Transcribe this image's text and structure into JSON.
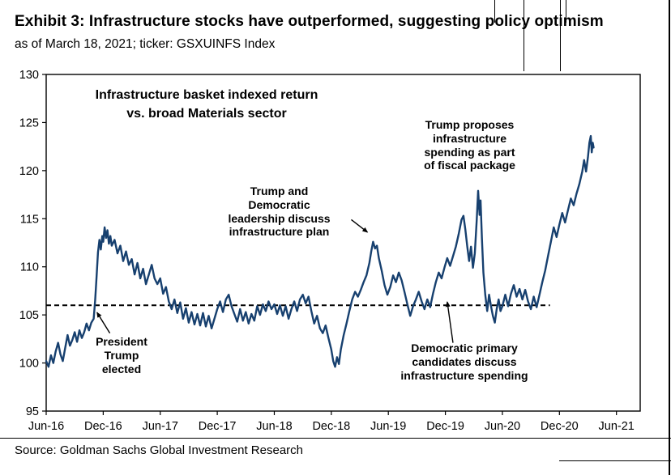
{
  "header": {
    "title": "Exhibit 3: Infrastructure stocks have outperformed, suggesting policy optimism",
    "subtitle": "as of March 18, 2021; ticker: GSXUINFS Index"
  },
  "footer": {
    "source": "Source: Goldman Sachs Global Investment Research"
  },
  "chart_data": {
    "type": "line",
    "title": "Infrastructure basket indexed return\nvs. broad Materials sector",
    "xlabel": "",
    "ylabel": "",
    "line_color": "#17406f",
    "grid": false,
    "legend": "none",
    "x_axis": {
      "tick_labels": [
        "Jun-16",
        "Dec-16",
        "Jun-17",
        "Dec-17",
        "Jun-18",
        "Dec-18",
        "Jun-19",
        "Dec-19",
        "Jun-20",
        "Dec-20",
        "Jun-21"
      ],
      "tick_spacing_months": 6,
      "range_months": [
        0,
        62.5
      ]
    },
    "y_axis": {
      "ticks": [
        95,
        100,
        105,
        110,
        115,
        120,
        125,
        130
      ],
      "range": [
        95,
        130
      ]
    },
    "dashed_reference_line": {
      "value": 106,
      "x_start": 0,
      "x_end": 53,
      "color": "#000000",
      "style": "dashed"
    },
    "annotations": [
      {
        "id": "president-trump-elected",
        "text": "President\nTrump\nelected",
        "arrow": {
          "from": [
            6.7,
            103.1
          ],
          "to": [
            5.35,
            105.25
          ]
        }
      },
      {
        "id": "trump-dem-leadership",
        "text": "Trump and\nDemocratic\nleadership discuss\ninfrastructure plan",
        "arrow": {
          "from": [
            32.1,
            114.9
          ],
          "to": [
            33.8,
            113.6
          ]
        }
      },
      {
        "id": "trump-proposes-fiscal",
        "text": "Trump proposes\ninfrastructure\nspending as part\nof fiscal package",
        "arrow": null
      },
      {
        "id": "democratic-primary",
        "text": "Democratic primary\ncandidates discuss\ninfrastructure spending",
        "arrow": {
          "from": [
            42.8,
            102.1
          ],
          "to": [
            42.2,
            106.35
          ]
        }
      }
    ],
    "series": [
      {
        "name": "GSXUINFS Index (infrastructure basket indexed return vs. broad Materials sector)",
        "x_unit": "months since Jun-2016",
        "points": [
          [
            0,
            100.2
          ],
          [
            0.25,
            99.6
          ],
          [
            0.5,
            100.8
          ],
          [
            0.75,
            100.0
          ],
          [
            1,
            101.2
          ],
          [
            1.25,
            102.1
          ],
          [
            1.5,
            100.9
          ],
          [
            1.75,
            100.2
          ],
          [
            2,
            101.6
          ],
          [
            2.25,
            102.9
          ],
          [
            2.5,
            101.8
          ],
          [
            2.75,
            102.4
          ],
          [
            3,
            103.2
          ],
          [
            3.25,
            102.2
          ],
          [
            3.5,
            103.4
          ],
          [
            3.75,
            102.6
          ],
          [
            4,
            103.2
          ],
          [
            4.25,
            104.1
          ],
          [
            4.5,
            103.4
          ],
          [
            4.75,
            104.2
          ],
          [
            5,
            104.6
          ],
          [
            5.15,
            106.5
          ],
          [
            5.3,
            109.0
          ],
          [
            5.45,
            111.5
          ],
          [
            5.6,
            112.8
          ],
          [
            5.75,
            111.8
          ],
          [
            5.9,
            113.2
          ],
          [
            6,
            112.6
          ],
          [
            6.15,
            114.1
          ],
          [
            6.3,
            113.0
          ],
          [
            6.45,
            113.8
          ],
          [
            6.6,
            112.4
          ],
          [
            6.75,
            113.2
          ],
          [
            6.9,
            112.2
          ],
          [
            7.2,
            112.8
          ],
          [
            7.5,
            111.4
          ],
          [
            7.8,
            112.2
          ],
          [
            8.1,
            110.6
          ],
          [
            8.4,
            111.6
          ],
          [
            8.7,
            110.2
          ],
          [
            9,
            110.8
          ],
          [
            9.3,
            109.2
          ],
          [
            9.6,
            110.4
          ],
          [
            9.9,
            108.8
          ],
          [
            10.2,
            109.8
          ],
          [
            10.5,
            108.2
          ],
          [
            10.8,
            109.2
          ],
          [
            11.1,
            110.2
          ],
          [
            11.4,
            108.8
          ],
          [
            11.7,
            108.2
          ],
          [
            12,
            108.8
          ],
          [
            12.3,
            107.2
          ],
          [
            12.6,
            107.9
          ],
          [
            12.9,
            106.4
          ],
          [
            13.2,
            105.6
          ],
          [
            13.5,
            106.6
          ],
          [
            13.8,
            105.2
          ],
          [
            14.1,
            106.3
          ],
          [
            14.4,
            104.6
          ],
          [
            14.7,
            105.7
          ],
          [
            15,
            104.2
          ],
          [
            15.3,
            105.3
          ],
          [
            15.6,
            104.0
          ],
          [
            15.9,
            105.1
          ],
          [
            16.2,
            103.9
          ],
          [
            16.5,
            105.2
          ],
          [
            16.8,
            103.8
          ],
          [
            17.1,
            104.9
          ],
          [
            17.4,
            103.6
          ],
          [
            17.7,
            104.6
          ],
          [
            18,
            105.6
          ],
          [
            18.3,
            106.4
          ],
          [
            18.6,
            105.3
          ],
          [
            18.9,
            106.6
          ],
          [
            19.2,
            107.1
          ],
          [
            19.5,
            105.9
          ],
          [
            19.8,
            105.1
          ],
          [
            20.1,
            104.3
          ],
          [
            20.4,
            105.6
          ],
          [
            20.7,
            104.4
          ],
          [
            21,
            105.3
          ],
          [
            21.3,
            104.1
          ],
          [
            21.6,
            105.1
          ],
          [
            21.9,
            104.4
          ],
          [
            22.2,
            105.9
          ],
          [
            22.5,
            105.0
          ],
          [
            22.8,
            106.1
          ],
          [
            23.1,
            105.4
          ],
          [
            23.4,
            106.4
          ],
          [
            23.7,
            105.6
          ],
          [
            24,
            106.1
          ],
          [
            24.3,
            105.1
          ],
          [
            24.6,
            106.0
          ],
          [
            24.9,
            104.9
          ],
          [
            25.2,
            105.9
          ],
          [
            25.5,
            104.6
          ],
          [
            25.8,
            105.6
          ],
          [
            26.1,
            106.4
          ],
          [
            26.4,
            105.4
          ],
          [
            26.7,
            106.6
          ],
          [
            27,
            107.1
          ],
          [
            27.3,
            106.2
          ],
          [
            27.6,
            106.9
          ],
          [
            27.9,
            105.4
          ],
          [
            28.2,
            104.1
          ],
          [
            28.5,
            104.9
          ],
          [
            28.8,
            103.6
          ],
          [
            29.1,
            103.1
          ],
          [
            29.4,
            103.9
          ],
          [
            29.7,
            102.6
          ],
          [
            30,
            101.4
          ],
          [
            30.2,
            100.2
          ],
          [
            30.4,
            99.6
          ],
          [
            30.6,
            100.6
          ],
          [
            30.8,
            99.9
          ],
          [
            31,
            101.4
          ],
          [
            31.3,
            102.9
          ],
          [
            31.6,
            104.1
          ],
          [
            31.9,
            105.4
          ],
          [
            32.2,
            106.6
          ],
          [
            32.5,
            107.4
          ],
          [
            32.8,
            106.9
          ],
          [
            33.1,
            107.6
          ],
          [
            33.4,
            108.4
          ],
          [
            33.7,
            109.1
          ],
          [
            34,
            110.4
          ],
          [
            34.2,
            111.6
          ],
          [
            34.4,
            112.6
          ],
          [
            34.6,
            111.9
          ],
          [
            34.8,
            112.2
          ],
          [
            35,
            110.9
          ],
          [
            35.3,
            109.6
          ],
          [
            35.6,
            108.1
          ],
          [
            35.9,
            107.1
          ],
          [
            36.2,
            107.9
          ],
          [
            36.5,
            109.1
          ],
          [
            36.8,
            108.4
          ],
          [
            37.1,
            109.4
          ],
          [
            37.4,
            108.6
          ],
          [
            37.7,
            107.4
          ],
          [
            38,
            106.1
          ],
          [
            38.3,
            104.9
          ],
          [
            38.6,
            105.9
          ],
          [
            38.9,
            106.6
          ],
          [
            39.2,
            107.4
          ],
          [
            39.5,
            106.4
          ],
          [
            39.8,
            105.6
          ],
          [
            40.1,
            106.6
          ],
          [
            40.4,
            105.8
          ],
          [
            40.7,
            107.2
          ],
          [
            41,
            108.4
          ],
          [
            41.3,
            109.4
          ],
          [
            41.6,
            108.8
          ],
          [
            41.9,
            109.9
          ],
          [
            42.2,
            110.9
          ],
          [
            42.5,
            110.1
          ],
          [
            42.8,
            111.1
          ],
          [
            43.1,
            112.1
          ],
          [
            43.4,
            113.4
          ],
          [
            43.7,
            114.9
          ],
          [
            43.9,
            115.3
          ],
          [
            44.1,
            113.9
          ],
          [
            44.3,
            112.1
          ],
          [
            44.5,
            110.6
          ],
          [
            44.7,
            112.1
          ],
          [
            44.9,
            109.9
          ],
          [
            45.1,
            111.4
          ],
          [
            45.3,
            114.9
          ],
          [
            45.45,
            117.9
          ],
          [
            45.6,
            115.4
          ],
          [
            45.7,
            116.9
          ],
          [
            45.85,
            112.9
          ],
          [
            46,
            109.4
          ],
          [
            46.2,
            107.1
          ],
          [
            46.4,
            105.4
          ],
          [
            46.6,
            107.1
          ],
          [
            46.8,
            105.9
          ],
          [
            47,
            104.9
          ],
          [
            47.2,
            104.2
          ],
          [
            47.4,
            105.6
          ],
          [
            47.6,
            106.6
          ],
          [
            47.8,
            105.4
          ],
          [
            48,
            105.9
          ],
          [
            48.3,
            107.1
          ],
          [
            48.6,
            105.9
          ],
          [
            48.9,
            107.2
          ],
          [
            49.2,
            108.1
          ],
          [
            49.5,
            106.9
          ],
          [
            49.8,
            107.7
          ],
          [
            50.1,
            106.6
          ],
          [
            50.4,
            107.6
          ],
          [
            50.7,
            106.4
          ],
          [
            51,
            105.6
          ],
          [
            51.3,
            106.9
          ],
          [
            51.6,
            105.8
          ],
          [
            51.9,
            107.1
          ],
          [
            52.2,
            108.4
          ],
          [
            52.5,
            109.6
          ],
          [
            52.8,
            111.1
          ],
          [
            53.1,
            112.6
          ],
          [
            53.4,
            114.1
          ],
          [
            53.7,
            113.1
          ],
          [
            54,
            114.4
          ],
          [
            54.3,
            115.6
          ],
          [
            54.6,
            114.6
          ],
          [
            54.9,
            115.9
          ],
          [
            55.2,
            117.1
          ],
          [
            55.5,
            116.4
          ],
          [
            55.8,
            117.6
          ],
          [
            56.1,
            118.6
          ],
          [
            56.4,
            119.9
          ],
          [
            56.6,
            121.1
          ],
          [
            56.8,
            119.9
          ],
          [
            57,
            121.4
          ],
          [
            57.15,
            122.9
          ],
          [
            57.3,
            123.6
          ],
          [
            57.4,
            121.9
          ],
          [
            57.5,
            122.9
          ],
          [
            57.6,
            122.4
          ]
        ]
      }
    ]
  }
}
